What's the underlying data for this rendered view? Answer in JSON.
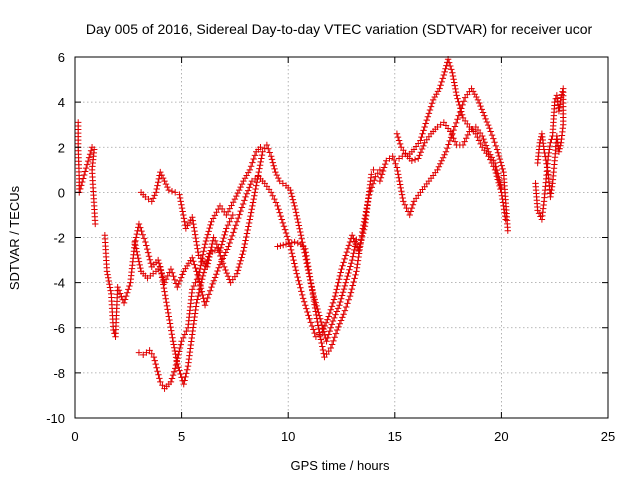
{
  "chart_data": {
    "type": "scatter",
    "marker": "plus",
    "color": "#e00000",
    "title": "Day 005 of 2016, Sidereal Day-to-day VTEC variation (SDTVAR) for receiver ucor",
    "xlabel": "GPS time / hours",
    "ylabel": "SDTVAR / TECUs",
    "xlim": [
      0,
      25
    ],
    "ylim": [
      -10,
      6
    ],
    "xticks": [
      0,
      5,
      10,
      15,
      20,
      25
    ],
    "yticks": [
      -10,
      -8,
      -6,
      -4,
      -2,
      0,
      2,
      4,
      6
    ],
    "grid": true,
    "series": [
      {
        "name": "track-early-isolated",
        "points": [
          [
            0.15,
            3.1
          ],
          [
            0.15,
            2.0
          ],
          [
            0.2,
            0.6
          ],
          [
            0.2,
            0.0
          ],
          [
            0.8,
            2.0
          ],
          [
            0.9,
            1.9
          ],
          [
            0.8,
            1.0
          ],
          [
            0.85,
            0.2
          ],
          [
            0.9,
            -0.6
          ],
          [
            0.95,
            -1.4
          ]
        ]
      },
      {
        "name": "track-a",
        "points": [
          [
            1.4,
            -1.9
          ],
          [
            1.5,
            -3.5
          ],
          [
            1.7,
            -4.5
          ],
          [
            1.8,
            -6.1
          ],
          [
            1.9,
            -6.4
          ],
          [
            2.0,
            -4.2
          ],
          [
            2.3,
            -4.9
          ],
          [
            2.6,
            -4.0
          ],
          [
            2.8,
            -2.3
          ],
          [
            3.0,
            -1.4
          ],
          [
            3.3,
            -2.2
          ],
          [
            3.6,
            -3.3
          ],
          [
            3.9,
            -3.0
          ],
          [
            4.2,
            -4.0
          ],
          [
            4.5,
            -3.4
          ],
          [
            4.8,
            -4.2
          ],
          [
            5.1,
            -3.5
          ],
          [
            5.5,
            -2.9
          ],
          [
            5.8,
            -3.8
          ],
          [
            6.1,
            -5.0
          ],
          [
            6.4,
            -4.2
          ],
          [
            6.8,
            -3.2
          ],
          [
            7.2,
            -2.4
          ],
          [
            7.6,
            -1.3
          ],
          [
            8.0,
            -0.2
          ],
          [
            8.3,
            0.5
          ],
          [
            8.6,
            0.7
          ],
          [
            8.9,
            0.4
          ],
          [
            9.2,
            0.0
          ],
          [
            9.5,
            -0.6
          ],
          [
            9.8,
            -1.5
          ],
          [
            10.1,
            -2.4
          ],
          [
            10.4,
            -3.6
          ],
          [
            10.7,
            -4.7
          ],
          [
            11.0,
            -5.6
          ],
          [
            11.3,
            -6.4
          ],
          [
            11.6,
            -6.2
          ],
          [
            11.9,
            -5.5
          ],
          [
            12.2,
            -4.6
          ],
          [
            12.5,
            -3.4
          ],
          [
            12.8,
            -2.5
          ],
          [
            13.0,
            -1.9
          ],
          [
            13.3,
            -2.6
          ],
          [
            13.6,
            -1.5
          ],
          [
            13.9,
            0.8
          ],
          [
            14.0,
            1.0
          ]
        ]
      },
      {
        "name": "track-b",
        "points": [
          [
            2.8,
            -2.2
          ],
          [
            3.1,
            -3.5
          ],
          [
            3.4,
            -3.8
          ],
          [
            3.8,
            -3.5
          ],
          [
            4.0,
            -3.3
          ],
          [
            4.2,
            -4.4
          ],
          [
            4.4,
            -5.5
          ],
          [
            4.6,
            -6.6
          ],
          [
            4.8,
            -7.6
          ],
          [
            5.1,
            -8.5
          ],
          [
            5.3,
            -7.7
          ],
          [
            5.5,
            -6.3
          ],
          [
            5.7,
            -4.9
          ],
          [
            6.0,
            -3.7
          ],
          [
            6.3,
            -2.7
          ],
          [
            6.7,
            -2.5
          ],
          [
            7.0,
            -3.3
          ],
          [
            7.3,
            -4.0
          ],
          [
            7.6,
            -3.6
          ],
          [
            7.9,
            -2.6
          ],
          [
            8.2,
            -1.2
          ],
          [
            8.5,
            0.3
          ],
          [
            8.8,
            1.8
          ],
          [
            9.0,
            2.1
          ],
          [
            9.2,
            1.6
          ],
          [
            9.4,
            0.9
          ],
          [
            9.6,
            0.5
          ],
          [
            9.9,
            0.3
          ],
          [
            10.1,
            0.1
          ],
          [
            10.3,
            -0.6
          ],
          [
            10.6,
            -1.9
          ],
          [
            10.9,
            -3.3
          ],
          [
            11.2,
            -4.6
          ],
          [
            11.5,
            -5.6
          ],
          [
            11.8,
            -6.6
          ],
          [
            12.1,
            -5.7
          ],
          [
            12.4,
            -5.0
          ],
          [
            12.7,
            -4.0
          ],
          [
            13.0,
            -3.0
          ],
          [
            13.2,
            -2.1
          ]
        ]
      },
      {
        "name": "track-c",
        "points": [
          [
            3.0,
            -7.1
          ],
          [
            3.2,
            -7.2
          ],
          [
            3.5,
            -7.0
          ],
          [
            3.7,
            -7.3
          ],
          [
            4.0,
            -8.4
          ],
          [
            4.2,
            -8.7
          ],
          [
            4.5,
            -8.4
          ],
          [
            4.7,
            -7.8
          ],
          [
            5.0,
            -6.6
          ],
          [
            5.3,
            -6.0
          ],
          [
            5.5,
            -4.3
          ],
          [
            5.8,
            -3.7
          ],
          [
            6.1,
            -2.3
          ],
          [
            6.4,
            -1.3
          ],
          [
            6.8,
            -0.6
          ],
          [
            7.1,
            -1.0
          ],
          [
            7.5,
            -0.3
          ],
          [
            7.9,
            0.5
          ],
          [
            8.2,
            1.0
          ],
          [
            8.5,
            1.8
          ],
          [
            8.7,
            2.0
          ]
        ]
      },
      {
        "name": "track-d",
        "points": [
          [
            3.1,
            0.0
          ],
          [
            3.3,
            -0.2
          ],
          [
            3.6,
            -0.4
          ],
          [
            3.8,
            0.0
          ],
          [
            4.0,
            0.9
          ],
          [
            4.2,
            0.5
          ],
          [
            4.4,
            0.1
          ],
          [
            4.7,
            0.0
          ],
          [
            4.9,
            -0.1
          ],
          [
            5.2,
            -1.6
          ],
          [
            5.5,
            -1.1
          ],
          [
            5.8,
            -2.8
          ],
          [
            6.2,
            -3.3
          ],
          [
            6.5,
            -2.0
          ],
          [
            6.8,
            -2.6
          ],
          [
            7.1,
            -1.6
          ],
          [
            7.4,
            -1.0
          ]
        ]
      },
      {
        "name": "track-e",
        "points": [
          [
            9.5,
            -2.4
          ],
          [
            9.9,
            -2.3
          ],
          [
            10.3,
            -2.2
          ],
          [
            10.6,
            -2.3
          ],
          [
            10.8,
            -2.5
          ],
          [
            11.1,
            -4.2
          ],
          [
            11.4,
            -5.9
          ],
          [
            11.7,
            -7.3
          ],
          [
            12.0,
            -6.9
          ],
          [
            12.3,
            -6.1
          ],
          [
            12.6,
            -5.4
          ],
          [
            12.9,
            -4.6
          ],
          [
            13.2,
            -3.5
          ],
          [
            13.5,
            -1.6
          ],
          [
            13.8,
            -0.1
          ],
          [
            14.1,
            0.7
          ],
          [
            14.3,
            1.0
          ]
        ]
      },
      {
        "name": "track-f",
        "points": [
          [
            14.3,
            0.5
          ],
          [
            14.6,
            1.4
          ],
          [
            14.9,
            1.6
          ],
          [
            15.1,
            1.1
          ],
          [
            15.4,
            -0.4
          ],
          [
            15.7,
            -1.0
          ],
          [
            15.9,
            -0.4
          ],
          [
            16.2,
            0.0
          ],
          [
            16.6,
            0.5
          ],
          [
            17.0,
            1.0
          ],
          [
            17.4,
            1.8
          ],
          [
            17.7,
            2.6
          ],
          [
            18.0,
            3.4
          ],
          [
            18.3,
            4.2
          ],
          [
            18.6,
            4.6
          ],
          [
            18.9,
            4.1
          ],
          [
            19.2,
            3.4
          ],
          [
            19.5,
            2.7
          ],
          [
            19.8,
            1.9
          ],
          [
            20.1,
            0.9
          ],
          [
            20.3,
            -1.7
          ]
        ]
      },
      {
        "name": "track-g",
        "points": [
          [
            15.1,
            2.6
          ],
          [
            15.3,
            2.0
          ],
          [
            15.6,
            1.6
          ],
          [
            15.9,
            1.9
          ],
          [
            16.2,
            2.3
          ],
          [
            16.5,
            3.2
          ],
          [
            16.8,
            4.1
          ],
          [
            17.1,
            4.6
          ],
          [
            17.3,
            5.2
          ],
          [
            17.5,
            5.9
          ],
          [
            17.7,
            5.3
          ],
          [
            17.9,
            4.3
          ],
          [
            18.2,
            3.3
          ],
          [
            18.5,
            2.9
          ],
          [
            18.8,
            2.6
          ],
          [
            19.1,
            2.0
          ],
          [
            19.4,
            1.6
          ],
          [
            19.7,
            1.0
          ],
          [
            20.0,
            0.0
          ],
          [
            20.2,
            -1.2
          ]
        ]
      },
      {
        "name": "track-h",
        "points": [
          [
            15.2,
            1.5
          ],
          [
            15.5,
            1.7
          ],
          [
            15.8,
            1.4
          ],
          [
            16.1,
            1.5
          ],
          [
            16.4,
            2.2
          ],
          [
            16.7,
            2.6
          ],
          [
            17.0,
            2.9
          ],
          [
            17.3,
            3.1
          ],
          [
            17.6,
            2.7
          ],
          [
            17.9,
            2.1
          ],
          [
            18.2,
            2.1
          ],
          [
            18.5,
            2.7
          ],
          [
            18.8,
            2.9
          ],
          [
            19.1,
            2.5
          ],
          [
            19.4,
            1.8
          ],
          [
            19.7,
            1.3
          ],
          [
            20.0,
            0.2
          ]
        ]
      },
      {
        "name": "track-late",
        "points": [
          [
            21.6,
            0.4
          ],
          [
            21.7,
            -0.8
          ],
          [
            21.9,
            -1.2
          ],
          [
            22.0,
            -0.4
          ],
          [
            22.1,
            0.6
          ],
          [
            22.2,
            1.6
          ],
          [
            22.3,
            2.2
          ],
          [
            22.4,
            2.5
          ],
          [
            22.5,
            4.0
          ],
          [
            22.6,
            4.3
          ],
          [
            22.7,
            3.6
          ],
          [
            22.8,
            4.2
          ],
          [
            22.9,
            4.6
          ],
          [
            22.9,
            3.0
          ],
          [
            22.8,
            2.2
          ],
          [
            22.7,
            1.8
          ],
          [
            22.6,
            2.5
          ],
          [
            22.5,
            1.4
          ],
          [
            22.4,
            0.4
          ],
          [
            22.3,
            -0.2
          ],
          [
            22.2,
            0.8
          ],
          [
            22.0,
            1.9
          ],
          [
            21.9,
            2.6
          ],
          [
            21.8,
            2.2
          ],
          [
            21.7,
            1.3
          ]
        ]
      }
    ]
  }
}
